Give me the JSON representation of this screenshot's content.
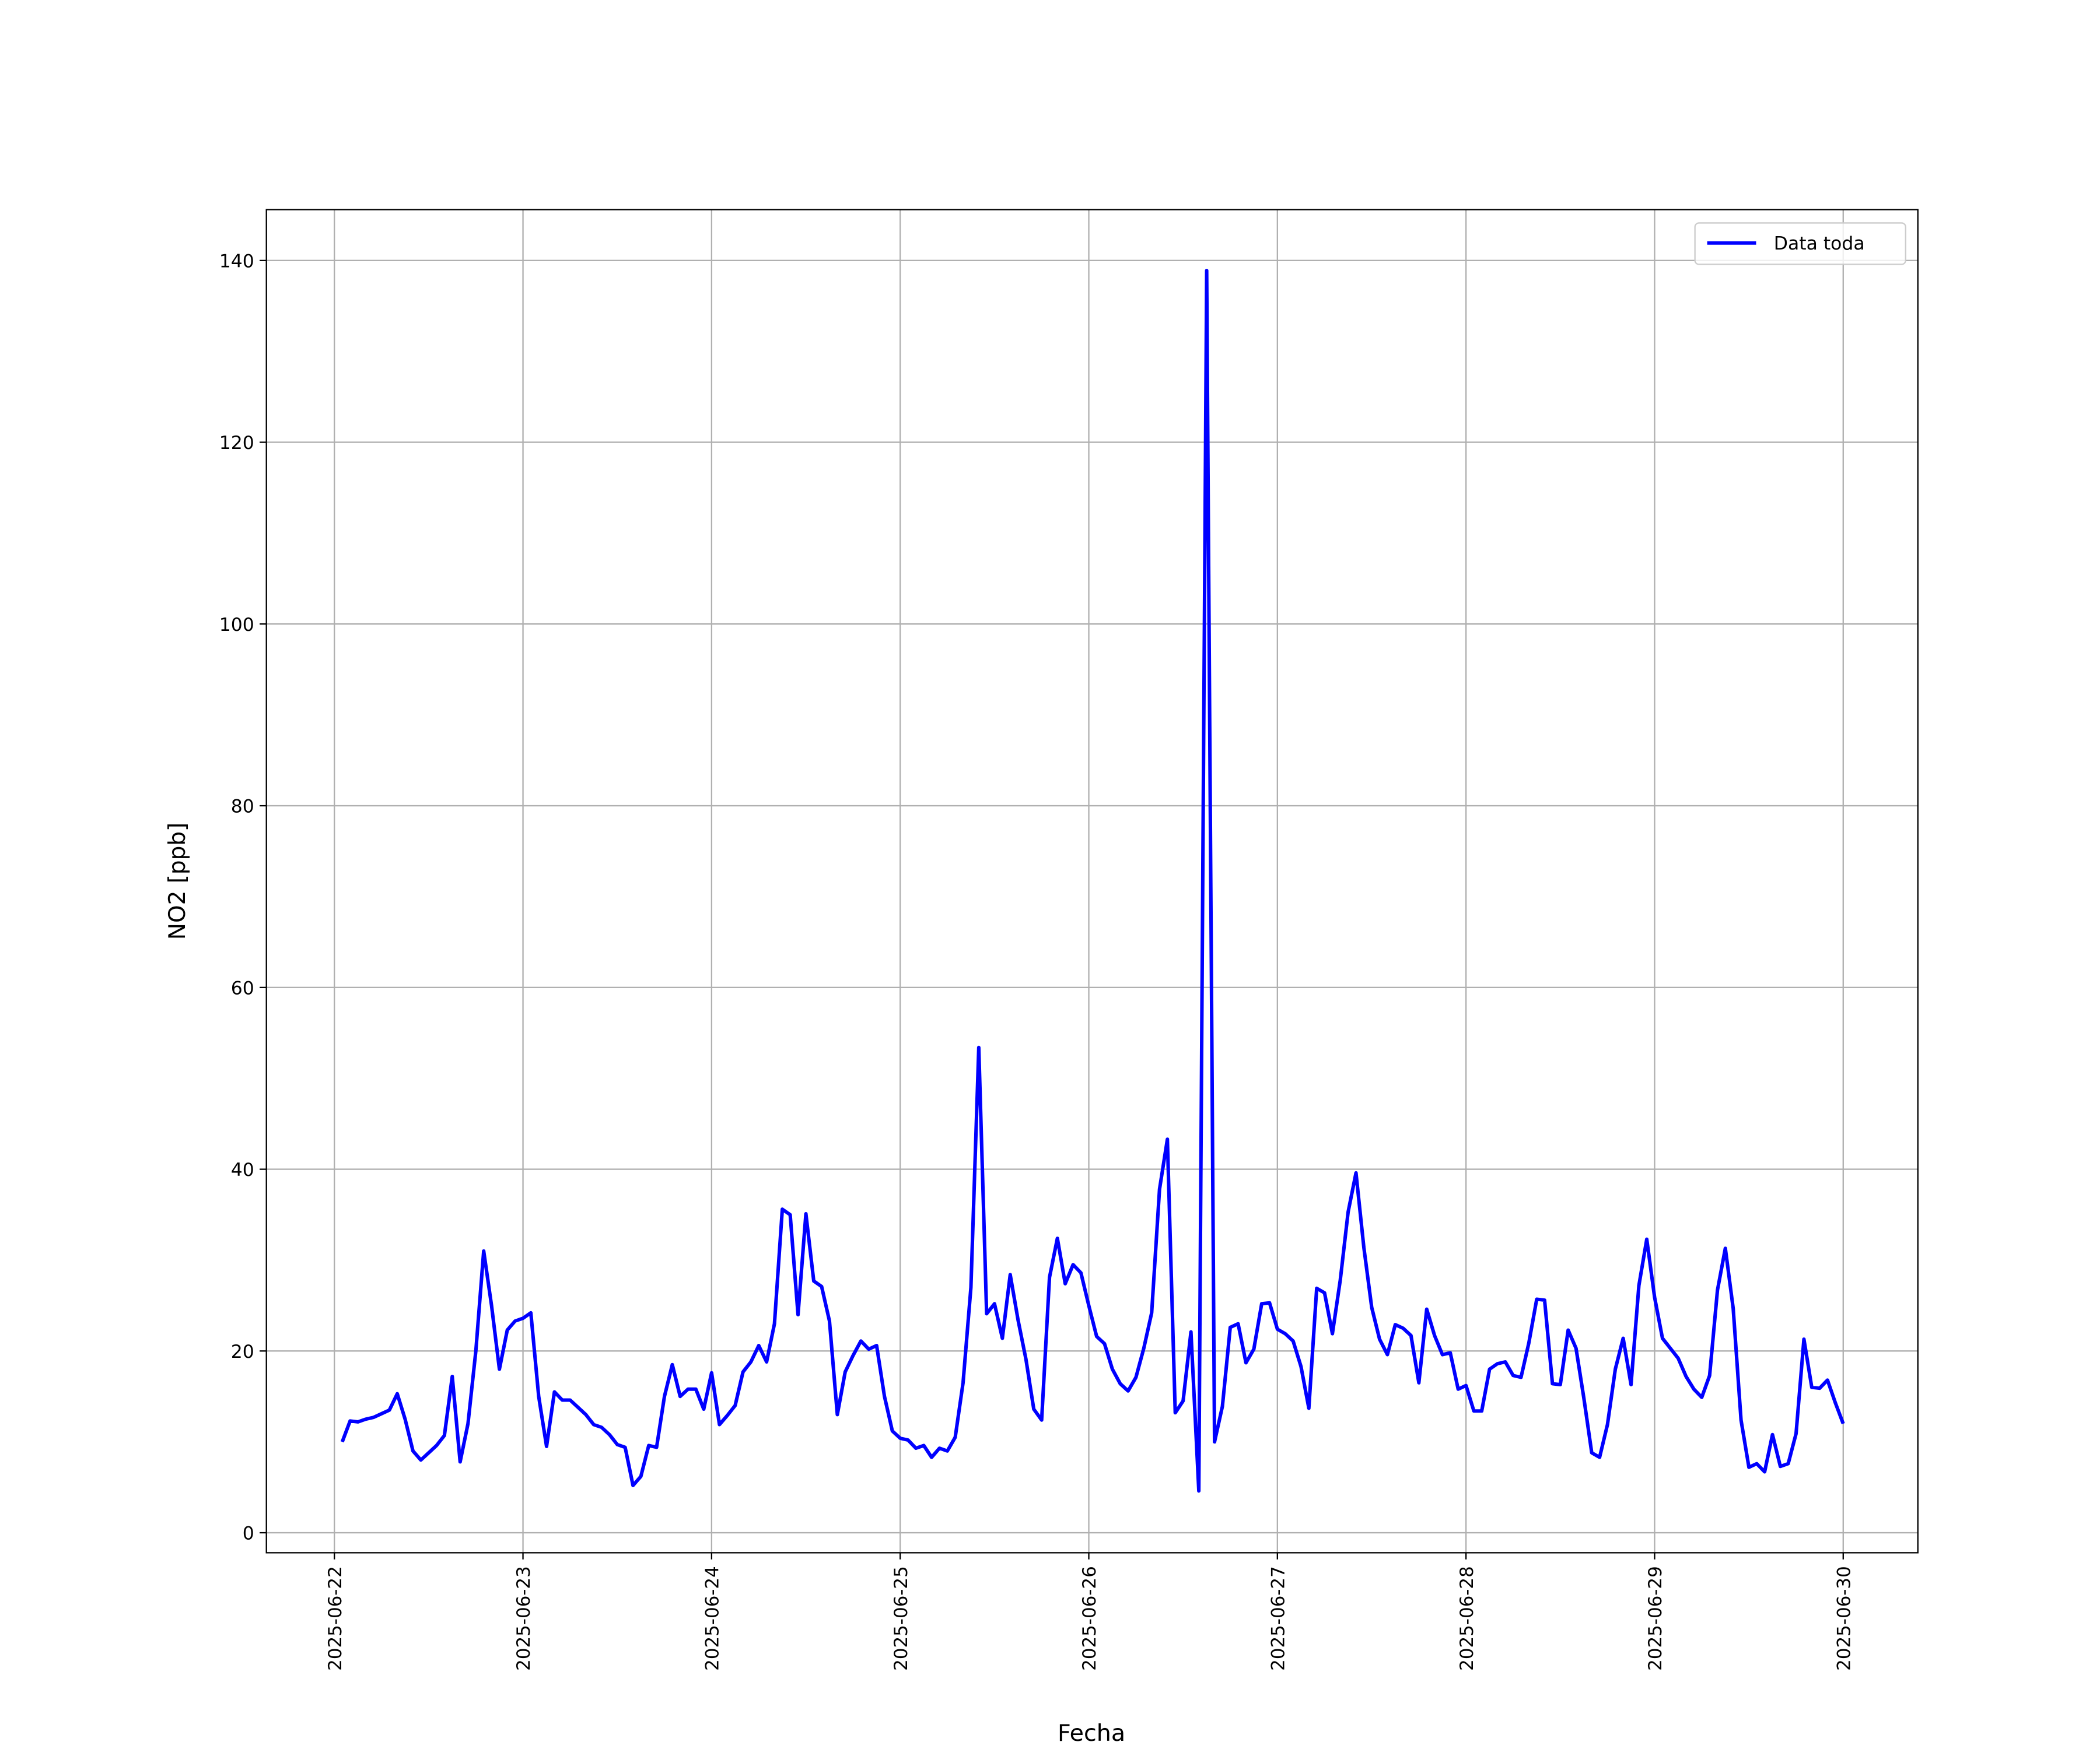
{
  "chart_data": {
    "type": "line",
    "xlabel": "Fecha",
    "ylabel": "NO2 [ppb]",
    "xlim": [
      "2025-06-21 15:21",
      "2025-06-30 09:30"
    ],
    "xticks": [
      "2025-06-22",
      "2025-06-23",
      "2025-06-24",
      "2025-06-25",
      "2025-06-26",
      "2025-06-27",
      "2025-06-28",
      "2025-06-29",
      "2025-06-30"
    ],
    "ylim": [
      -2.2,
      145.6
    ],
    "yticks": [
      0,
      20,
      40,
      60,
      80,
      100,
      120,
      140
    ],
    "grid": true,
    "legend": "upper right",
    "x": [
      "2025-06-22 01:00",
      "2025-06-22 02:00",
      "2025-06-22 03:00",
      "2025-06-22 04:00",
      "2025-06-22 05:00",
      "2025-06-22 06:00",
      "2025-06-22 07:00",
      "2025-06-22 08:00",
      "2025-06-22 09:00",
      "2025-06-22 10:00",
      "2025-06-22 11:00",
      "2025-06-22 12:00",
      "2025-06-22 13:00",
      "2025-06-22 14:00",
      "2025-06-22 15:00",
      "2025-06-22 16:00",
      "2025-06-22 17:00",
      "2025-06-22 18:00",
      "2025-06-22 19:00",
      "2025-06-22 20:00",
      "2025-06-22 21:00",
      "2025-06-22 22:00",
      "2025-06-22 23:00",
      "2025-06-23 00:00",
      "2025-06-23 01:00",
      "2025-06-23 02:00",
      "2025-06-23 03:00",
      "2025-06-23 04:00",
      "2025-06-23 05:00",
      "2025-06-23 06:00",
      "2025-06-23 07:00",
      "2025-06-23 08:00",
      "2025-06-23 09:00",
      "2025-06-23 10:00",
      "2025-06-23 11:00",
      "2025-06-23 12:00",
      "2025-06-23 13:00",
      "2025-06-23 14:00",
      "2025-06-23 15:00",
      "2025-06-23 16:00",
      "2025-06-23 17:00",
      "2025-06-23 18:00",
      "2025-06-23 19:00",
      "2025-06-23 20:00",
      "2025-06-23 21:00",
      "2025-06-23 22:00",
      "2025-06-23 23:00",
      "2025-06-24 00:00",
      "2025-06-24 01:00",
      "2025-06-24 02:00",
      "2025-06-24 03:00",
      "2025-06-24 04:00",
      "2025-06-24 05:00",
      "2025-06-24 06:00",
      "2025-06-24 07:00",
      "2025-06-24 08:00",
      "2025-06-24 09:00",
      "2025-06-24 10:00",
      "2025-06-24 11:00",
      "2025-06-24 12:00",
      "2025-06-24 13:00",
      "2025-06-24 14:00",
      "2025-06-24 15:00",
      "2025-06-24 16:00",
      "2025-06-24 17:00",
      "2025-06-24 18:00",
      "2025-06-24 19:00",
      "2025-06-24 20:00",
      "2025-06-24 21:00",
      "2025-06-24 22:00",
      "2025-06-24 23:00",
      "2025-06-25 00:00",
      "2025-06-25 01:00",
      "2025-06-25 02:00",
      "2025-06-25 03:00",
      "2025-06-25 04:00",
      "2025-06-25 05:00",
      "2025-06-25 06:00",
      "2025-06-25 07:00",
      "2025-06-25 08:00",
      "2025-06-25 09:00",
      "2025-06-25 10:00",
      "2025-06-25 11:00",
      "2025-06-25 12:00",
      "2025-06-25 13:00",
      "2025-06-25 14:00",
      "2025-06-25 15:00",
      "2025-06-25 16:00",
      "2025-06-25 17:00",
      "2025-06-25 18:00",
      "2025-06-25 19:00",
      "2025-06-25 20:00",
      "2025-06-25 21:00",
      "2025-06-25 22:00",
      "2025-06-25 23:00",
      "2025-06-26 00:00",
      "2025-06-26 01:00",
      "2025-06-26 02:00",
      "2025-06-26 03:00",
      "2025-06-26 04:00",
      "2025-06-26 05:00",
      "2025-06-26 06:00",
      "2025-06-26 07:00",
      "2025-06-26 08:00",
      "2025-06-26 09:00",
      "2025-06-26 10:00",
      "2025-06-26 11:00",
      "2025-06-26 12:00",
      "2025-06-26 13:00",
      "2025-06-26 14:00",
      "2025-06-26 15:00",
      "2025-06-26 16:00",
      "2025-06-26 17:00",
      "2025-06-26 18:00",
      "2025-06-26 19:00",
      "2025-06-26 20:00",
      "2025-06-26 21:00",
      "2025-06-26 22:00",
      "2025-06-26 23:00",
      "2025-06-27 00:00",
      "2025-06-27 01:00",
      "2025-06-27 02:00",
      "2025-06-27 03:00",
      "2025-06-27 04:00",
      "2025-06-27 05:00",
      "2025-06-27 06:00",
      "2025-06-27 07:00",
      "2025-06-27 08:00",
      "2025-06-27 09:00",
      "2025-06-27 10:00",
      "2025-06-27 11:00",
      "2025-06-27 12:00",
      "2025-06-27 13:00",
      "2025-06-27 14:00",
      "2025-06-27 15:00",
      "2025-06-27 16:00",
      "2025-06-27 17:00",
      "2025-06-27 18:00",
      "2025-06-27 19:00",
      "2025-06-27 20:00",
      "2025-06-27 21:00",
      "2025-06-27 22:00",
      "2025-06-27 23:00",
      "2025-06-28 00:00",
      "2025-06-28 01:00",
      "2025-06-28 02:00",
      "2025-06-28 03:00",
      "2025-06-28 04:00",
      "2025-06-28 05:00",
      "2025-06-28 06:00",
      "2025-06-28 07:00",
      "2025-06-28 08:00",
      "2025-06-28 09:00",
      "2025-06-28 10:00",
      "2025-06-28 11:00",
      "2025-06-28 12:00",
      "2025-06-28 13:00",
      "2025-06-28 14:00",
      "2025-06-28 15:00",
      "2025-06-28 16:00",
      "2025-06-28 17:00",
      "2025-06-28 18:00",
      "2025-06-28 19:00",
      "2025-06-28 20:00",
      "2025-06-28 21:00",
      "2025-06-28 22:00",
      "2025-06-28 23:00",
      "2025-06-29 00:00",
      "2025-06-29 01:00",
      "2025-06-29 02:00",
      "2025-06-29 03:00",
      "2025-06-29 04:00",
      "2025-06-29 05:00",
      "2025-06-29 06:00",
      "2025-06-29 07:00",
      "2025-06-29 08:00",
      "2025-06-29 09:00",
      "2025-06-29 10:00",
      "2025-06-29 11:00",
      "2025-06-29 12:00",
      "2025-06-29 13:00",
      "2025-06-29 14:00",
      "2025-06-29 15:00",
      "2025-06-29 16:00",
      "2025-06-29 17:00",
      "2025-06-29 18:00",
      "2025-06-29 19:00",
      "2025-06-29 20:00",
      "2025-06-29 21:00",
      "2025-06-29 22:00",
      "2025-06-29 23:00",
      "2025-06-30 00:00"
    ],
    "series": [
      {
        "name": "Data toda",
        "color": "#0000ff",
        "values": [
          10,
          12.3,
          12.2,
          12.5,
          12.7,
          13.1,
          13.5,
          15.3,
          12.5,
          9,
          8,
          8.8,
          9.6,
          10.7,
          17.2,
          7.8,
          12,
          20,
          31,
          25,
          18,
          22.3,
          23.3,
          23.6,
          24.2,
          15,
          9.5,
          15.5,
          14.6,
          14.6,
          13.8,
          13,
          11.9,
          11.6,
          10.8,
          9.7,
          9.4,
          5.2,
          6.2,
          9.6,
          9.4,
          15,
          18.5,
          15,
          15.8,
          15.8,
          13.6,
          17.6,
          11.9,
          12.9,
          14,
          17.7,
          18.8,
          20.6,
          18.8,
          23,
          35.6,
          35,
          24,
          35.1,
          27.7,
          27.1,
          23.3,
          13,
          17.7,
          19.5,
          21.1,
          20.2,
          20.6,
          15,
          11.2,
          10.4,
          10.2,
          9.3,
          9.6,
          8.3,
          9.3,
          9,
          10.5,
          16.5,
          27,
          53.4,
          24.1,
          25.2,
          21.4,
          28.4,
          23.4,
          19.1,
          13.6,
          12.4,
          28.1,
          32.4,
          27.4,
          29.5,
          28.6,
          25,
          21.6,
          20.8,
          18,
          16.4,
          15.6,
          17.1,
          20.3,
          24.2,
          37.8,
          43.3,
          13.2,
          14.5,
          22.1,
          4.6,
          138.9,
          10,
          13.9,
          22.6,
          23,
          18.7,
          20.2,
          25.2,
          25.3,
          22.4,
          21.9,
          21.1,
          18.3,
          13.7,
          26.9,
          26.4,
          21.9,
          27.8,
          35.3,
          39.6,
          31.4,
          24.8,
          21.3,
          19.6,
          22.9,
          22.5,
          21.7,
          16.5,
          24.6,
          21.7,
          19.6,
          19.8,
          15.8,
          16.2,
          13.4,
          13.4,
          18,
          18.6,
          18.8,
          17.3,
          17.1,
          20.9,
          25.7,
          25.6,
          16.4,
          16.3,
          22.3,
          20.3,
          14.8,
          8.8,
          8.3,
          11.9,
          18,
          21.4,
          16.3,
          27.2,
          32.3,
          25.9,
          21.4,
          20.3,
          19.2,
          17.2,
          15.8,
          14.9,
          17.3,
          26.7,
          31.3,
          24.7,
          12.4,
          7.2,
          7.6,
          6.7,
          10.8,
          7.3,
          7.6,
          10.9,
          21.3,
          16,
          15.9,
          16.8,
          14.3,
          12
        ]
      }
    ]
  }
}
